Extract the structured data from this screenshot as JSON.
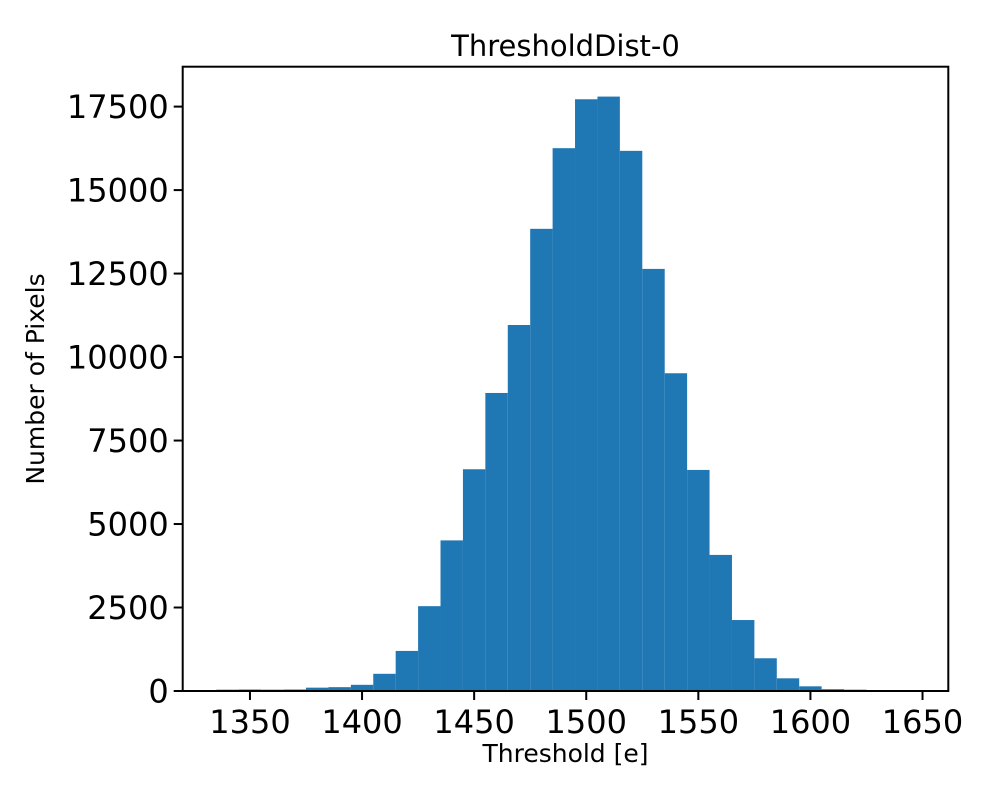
{
  "figure": {
    "background": "#ffffff",
    "axes_color": "#000000"
  },
  "chart_data": {
    "type": "bar",
    "subtype": "histogram",
    "title": "ThresholdDist-0",
    "xlabel": "Threshold [e]",
    "ylabel": "Number of Pixels",
    "bar_color": "#1f77b4",
    "grid": false,
    "legend": "none",
    "xlim": [
      1320,
      1661.5
    ],
    "ylim": [
      0,
      18695
    ],
    "xticks": [
      1350,
      1400,
      1450,
      1500,
      1550,
      1600,
      1650
    ],
    "yticks": [
      0,
      2500,
      5000,
      7500,
      10000,
      12500,
      15000,
      17500
    ],
    "bin_edges": [
      1335,
      1345,
      1355,
      1365,
      1375,
      1385,
      1395,
      1405,
      1415,
      1425,
      1435,
      1445,
      1455,
      1465,
      1475,
      1485,
      1495,
      1505,
      1515,
      1525,
      1535,
      1545,
      1555,
      1565,
      1575,
      1585,
      1595,
      1605,
      1615,
      1625,
      1635,
      1645
    ],
    "counts": [
      40,
      45,
      40,
      45,
      100,
      115,
      185,
      515,
      1200,
      2540,
      4510,
      6640,
      8925,
      10960,
      13840,
      16255,
      17720,
      17800,
      16175,
      12640,
      9515,
      6620,
      4075,
      2125,
      980,
      380,
      140,
      55,
      40,
      2,
      1
    ]
  }
}
